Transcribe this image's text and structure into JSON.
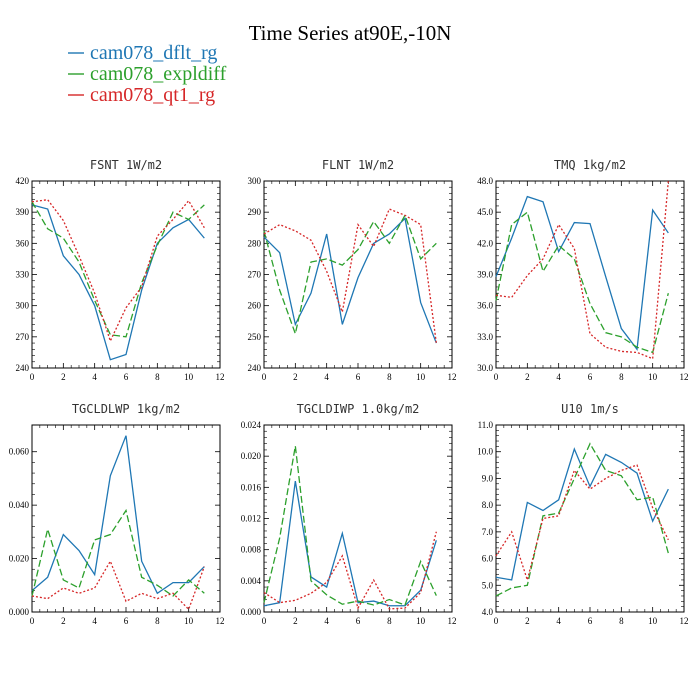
{
  "title": "Time Series at90E,-10N",
  "legend": [
    {
      "label": "cam078_dflt_rg",
      "color": "#1f77b4"
    },
    {
      "label": "cam078_expldiff",
      "color": "#2ca02c"
    },
    {
      "label": "cam078_qt1_rg",
      "color": "#d62728"
    }
  ],
  "chart_data": [
    {
      "type": "line",
      "title": "FSNT 1W/m2",
      "x": [
        0,
        1,
        2,
        3,
        4,
        5,
        6,
        7,
        8,
        9,
        10,
        11
      ],
      "xlim": [
        0,
        12
      ],
      "xticks": [
        0,
        2,
        4,
        6,
        8,
        10,
        12
      ],
      "ylim": [
        240,
        420
      ],
      "yticks": [
        240,
        270,
        300,
        330,
        360,
        390,
        420
      ],
      "ytick_labels": [
        "240",
        "270",
        "300",
        "330",
        "360",
        "390",
        "420"
      ],
      "series": [
        {
          "name": "cam078_dflt_rg",
          "values": [
            397,
            393,
            348,
            330,
            300,
            248,
            253,
            315,
            360,
            375,
            383,
            365
          ]
        },
        {
          "name": "cam078_expldiff",
          "values": [
            400,
            374,
            365,
            342,
            305,
            272,
            270,
            322,
            358,
            390,
            383,
            397
          ]
        },
        {
          "name": "cam078_qt1_rg",
          "values": [
            400,
            402,
            382,
            348,
            312,
            266,
            298,
            318,
            367,
            383,
            401,
            375
          ]
        }
      ]
    },
    {
      "type": "line",
      "title": "FLNT 1W/m2",
      "x": [
        0,
        1,
        2,
        3,
        4,
        5,
        6,
        7,
        8,
        9,
        10,
        11
      ],
      "xlim": [
        0,
        12
      ],
      "xticks": [
        0,
        2,
        4,
        6,
        8,
        10,
        12
      ],
      "ylim": [
        240,
        300
      ],
      "yticks": [
        240,
        250,
        260,
        270,
        280,
        290,
        300
      ],
      "ytick_labels": [
        "240",
        "250",
        "260",
        "270",
        "280",
        "290",
        "300"
      ],
      "series": [
        {
          "name": "cam078_dflt_rg",
          "values": [
            282,
            277,
            254,
            264,
            283,
            254,
            269,
            280,
            283,
            288,
            261,
            248
          ]
        },
        {
          "name": "cam078_expldiff",
          "values": [
            284,
            265,
            251,
            274,
            275,
            273,
            278,
            287,
            280,
            289,
            275,
            280
          ]
        },
        {
          "name": "cam078_qt1_rg",
          "values": [
            283,
            286,
            284,
            281,
            271,
            258,
            286,
            279,
            291,
            289,
            286,
            248
          ]
        }
      ]
    },
    {
      "type": "line",
      "title": "TMQ 1kg/m2",
      "x": [
        0,
        1,
        2,
        3,
        4,
        5,
        6,
        7,
        8,
        9,
        10,
        11
      ],
      "xlim": [
        0,
        12
      ],
      "xticks": [
        0,
        2,
        4,
        6,
        8,
        10,
        12
      ],
      "ylim": [
        30,
        48
      ],
      "yticks": [
        30,
        33,
        36,
        39,
        42,
        45,
        48
      ],
      "ytick_labels": [
        "30.0",
        "33.0",
        "36.0",
        "39.0",
        "42.0",
        "45.0",
        "48.0"
      ],
      "series": [
        {
          "name": "cam078_dflt_rg",
          "values": [
            38.8,
            42.5,
            46.5,
            46.0,
            41.2,
            44.0,
            43.9,
            38.8,
            33.8,
            31.8,
            45.2,
            43.0
          ]
        },
        {
          "name": "cam078_expldiff",
          "values": [
            36.5,
            43.8,
            45.0,
            39.3,
            41.8,
            40.5,
            36.2,
            33.4,
            33.0,
            32.0,
            31.5,
            37.2
          ]
        },
        {
          "name": "cam078_qt1_rg",
          "values": [
            37.0,
            36.8,
            38.9,
            40.5,
            43.8,
            41.5,
            33.3,
            32.0,
            31.6,
            31.5,
            30.9,
            48.0
          ]
        }
      ]
    },
    {
      "type": "line",
      "title": "TGCLDLWP 1kg/m2",
      "x": [
        0,
        1,
        2,
        3,
        4,
        5,
        6,
        7,
        8,
        9,
        10,
        11
      ],
      "xlim": [
        0,
        12
      ],
      "xticks": [
        0,
        2,
        4,
        6,
        8,
        10,
        12
      ],
      "ylim": [
        0,
        0.07
      ],
      "yticks": [
        0,
        0.02,
        0.04,
        0.06
      ],
      "ytick_labels": [
        "0.000",
        "0.020",
        "0.040",
        "0.060"
      ],
      "series": [
        {
          "name": "cam078_dflt_rg",
          "values": [
            0.008,
            0.013,
            0.029,
            0.023,
            0.014,
            0.051,
            0.066,
            0.019,
            0.007,
            0.011,
            0.011,
            0.017
          ]
        },
        {
          "name": "cam078_expldiff",
          "values": [
            0.006,
            0.031,
            0.012,
            0.009,
            0.027,
            0.029,
            0.038,
            0.013,
            0.01,
            0.006,
            0.012,
            0.007
          ]
        },
        {
          "name": "cam078_qt1_rg",
          "values": [
            0.006,
            0.005,
            0.009,
            0.007,
            0.009,
            0.019,
            0.004,
            0.007,
            0.005,
            0.007,
            0.001,
            0.017
          ]
        }
      ]
    },
    {
      "type": "line",
      "title": "TGCLDIWP 1.0kg/m2",
      "x": [
        0,
        1,
        2,
        3,
        4,
        5,
        6,
        7,
        8,
        9,
        10,
        11
      ],
      "xlim": [
        0,
        12
      ],
      "xticks": [
        0,
        2,
        4,
        6,
        8,
        10,
        12
      ],
      "ylim": [
        0,
        0.024
      ],
      "yticks": [
        0,
        0.004,
        0.008,
        0.012,
        0.016,
        0.02,
        0.024
      ],
      "ytick_labels": [
        "0.000",
        "0.004",
        "0.008",
        "0.012",
        "0.016",
        "0.020",
        "0.024"
      ],
      "series": [
        {
          "name": "cam078_dflt_rg",
          "values": [
            0.0008,
            0.0012,
            0.0168,
            0.0045,
            0.0032,
            0.0101,
            0.0012,
            0.0014,
            0.0008,
            0.0008,
            0.0028,
            0.0092
          ]
        },
        {
          "name": "cam078_expldiff",
          "values": [
            0.0012,
            0.0095,
            0.0213,
            0.004,
            0.0022,
            0.001,
            0.0014,
            0.0009,
            0.0016,
            0.0009,
            0.0065,
            0.0021
          ]
        },
        {
          "name": "cam078_qt1_rg",
          "values": [
            0.0025,
            0.0012,
            0.0015,
            0.0024,
            0.0038,
            0.0072,
            0.0005,
            0.0041,
            0.0004,
            0.0005,
            0.0025,
            0.0103
          ]
        }
      ]
    },
    {
      "type": "line",
      "title": "U10 1m/s",
      "x": [
        0,
        1,
        2,
        3,
        4,
        5,
        6,
        7,
        8,
        9,
        10,
        11
      ],
      "xlim": [
        0,
        12
      ],
      "xticks": [
        0,
        2,
        4,
        6,
        8,
        10,
        12
      ],
      "ylim": [
        4,
        11
      ],
      "yticks": [
        4,
        5,
        6,
        7,
        8,
        9,
        10,
        11
      ],
      "ytick_labels": [
        "4.0",
        "5.0",
        "6.0",
        "7.0",
        "8.0",
        "9.0",
        "10.0",
        "11.0"
      ],
      "series": [
        {
          "name": "cam078_dflt_rg",
          "values": [
            5.3,
            5.2,
            8.1,
            7.8,
            8.2,
            10.1,
            8.7,
            9.9,
            9.6,
            9.2,
            7.4,
            8.6
          ]
        },
        {
          "name": "cam078_expldiff",
          "values": [
            4.6,
            4.9,
            5.0,
            7.6,
            7.7,
            9.0,
            10.3,
            9.3,
            9.1,
            8.2,
            8.3,
            6.2
          ]
        },
        {
          "name": "cam078_qt1_rg",
          "values": [
            6.1,
            7.0,
            5.2,
            7.5,
            7.6,
            9.3,
            8.6,
            9.0,
            9.3,
            9.5,
            7.9,
            6.7
          ]
        }
      ]
    }
  ]
}
